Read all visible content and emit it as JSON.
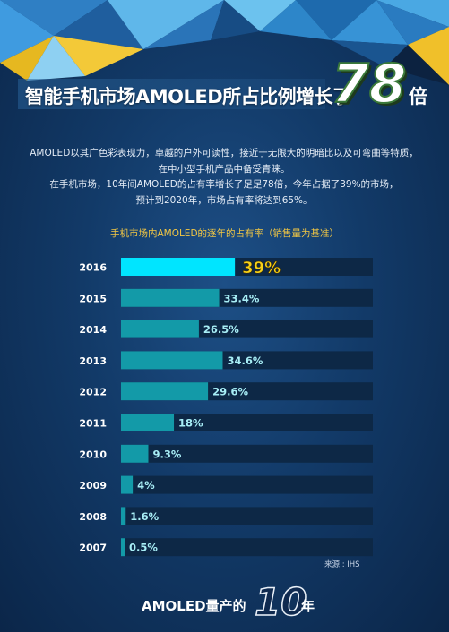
{
  "header": {
    "title": "智能手机市场AMOLED所占比例增长了",
    "title_number": "78",
    "title_suffix": "倍"
  },
  "intro": {
    "lines": [
      "AMOLED以其广色彩表现力，卓越的户外可读性，接近于无限大的明暗比以及可弯曲等特质，",
      "在中小型手机产品中备受青睐。",
      "在手机市场，10年间AMOLED的占有率增长了足足78倍，今年占据了39%的市场，",
      "预计到2020年，市场占有率将达到65%。"
    ]
  },
  "chart_data": {
    "type": "bar",
    "orientation": "horizontal",
    "title": "手机市场内AMOLED的逐年的占有率（销售量为基准）",
    "categories": [
      "2016",
      "2015",
      "2014",
      "2013",
      "2012",
      "2011",
      "2010",
      "2009",
      "2008",
      "2007"
    ],
    "values": [
      39,
      33.4,
      26.5,
      34.6,
      29.6,
      18,
      9.3,
      4,
      1.6,
      0.5
    ],
    "value_labels": [
      "39%",
      "33.4%",
      "26.5%",
      "34.6%",
      "29.6%",
      "18%",
      "9.3%",
      "4%",
      "1.6%",
      "0.5%"
    ],
    "unit": "%",
    "xlim": [
      0,
      100
    ],
    "grid": false,
    "legend": "none",
    "colors": {
      "highlight": "#00e5ff",
      "bar": "#139aa8",
      "track": "#0d2846",
      "label": "#a8eef6",
      "highlight_label": "#f7d21a"
    }
  },
  "source": "来源 : IHS",
  "footer": {
    "prefix": "AMOLED量产的",
    "number": "10",
    "suffix": "年"
  }
}
